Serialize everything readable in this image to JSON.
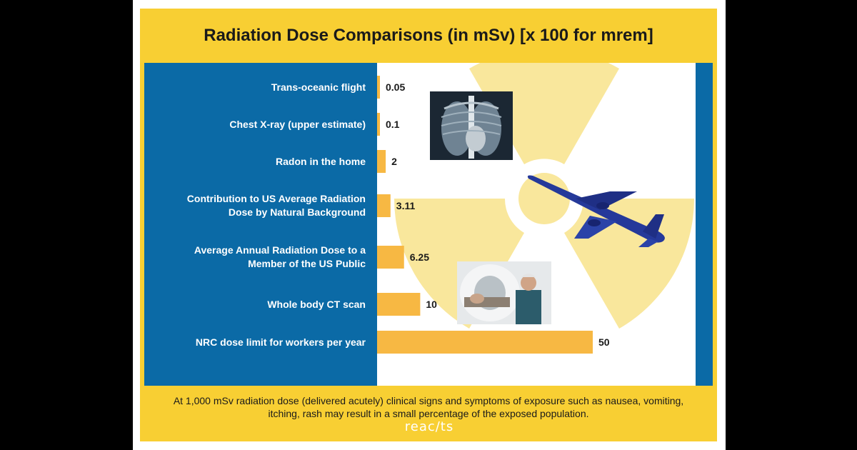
{
  "chart_data": {
    "type": "bar",
    "orientation": "horizontal",
    "title": "Radiation Dose Comparisons (in mSv) [x 100 for mrem]",
    "categories": [
      [
        "Trans-oceanic flight"
      ],
      [
        "Chest X-ray (upper estimate)"
      ],
      [
        "Radon in the home"
      ],
      [
        "Contribution to US Average Radiation",
        "Dose by Natural Background"
      ],
      [
        "Average Annual Radiation Dose to a",
        "Member of the US Public"
      ],
      [
        "Whole body CT scan"
      ],
      [
        "NRC dose limit for workers per year"
      ]
    ],
    "values": [
      0.05,
      0.1,
      2,
      3.11,
      6.25,
      10,
      50
    ],
    "value_labels": [
      "0.05",
      "0.1",
      "2",
      "3.11",
      "6.25",
      "10",
      "50"
    ],
    "xlim": [
      0,
      50
    ],
    "grid": false,
    "legend": "none"
  },
  "footnote": "At 1,000 mSv radiation dose (delivered acutely) clinical signs and symptoms of exposure such as nausea, vomiting, itching, rash may result in a small percentage of the exposed population.",
  "logo": "reac/ts",
  "images": [
    "chest-xray-icon",
    "airplane-icon",
    "ct-scanner-photo-icon",
    "radiation-trefoil-icon"
  ],
  "colors": {
    "frame": "#f8cf33",
    "label_panel": "#0b6aa6",
    "bar": "#f7b843",
    "trefoil": "#f9e79c"
  }
}
